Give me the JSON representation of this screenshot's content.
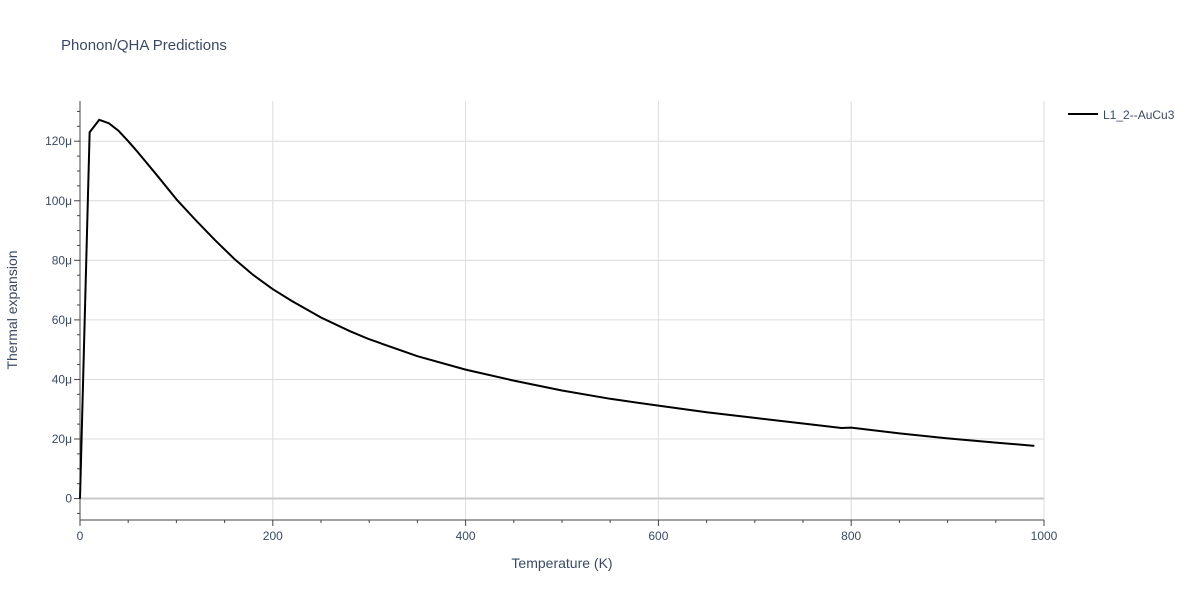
{
  "chart_data": {
    "type": "line",
    "title": "Phonon/QHA Predictions",
    "xlabel": "Temperature (K)",
    "ylabel": "Thermal expansion",
    "xlim": [
      0,
      1000
    ],
    "ylim": [
      -7.2e-06,
      0.0001335
    ],
    "x_ticks": [
      0,
      200,
      400,
      600,
      800,
      1000
    ],
    "x_tick_labels": [
      "0",
      "200",
      "400",
      "600",
      "800",
      "1000"
    ],
    "y_ticks": [
      0,
      2e-05,
      4e-05,
      6e-05,
      8e-05,
      0.0001,
      0.00012
    ],
    "y_tick_labels": [
      "0",
      "20μ",
      "40μ",
      "60μ",
      "80μ",
      "100μ",
      "120μ"
    ],
    "grid": true,
    "legend_position": "top-right",
    "line_color": "#000000",
    "series": [
      {
        "name": "L1_2--AuCu3",
        "x": [
          0,
          10,
          20,
          30,
          40,
          50,
          60,
          80,
          100,
          120,
          140,
          160,
          180,
          200,
          220,
          250,
          280,
          300,
          350,
          400,
          450,
          500,
          550,
          600,
          650,
          700,
          750,
          790,
          800,
          850,
          900,
          950,
          990
        ],
        "y": [
          0,
          0.000123,
          0.0001272,
          0.000126,
          0.0001235,
          0.00012,
          0.0001163,
          0.0001085,
          0.0001005,
          9.35e-05,
          8.68e-05,
          8.05e-05,
          7.5e-05,
          7.03e-05,
          6.63e-05,
          6.08e-05,
          5.62e-05,
          5.35e-05,
          4.78e-05,
          4.33e-05,
          3.96e-05,
          3.63e-05,
          3.35e-05,
          3.12e-05,
          2.9e-05,
          2.71e-05,
          2.52e-05,
          2.37e-05,
          2.38e-05,
          2.19e-05,
          2.02e-05,
          1.88e-05,
          1.77e-05
        ]
      }
    ]
  }
}
